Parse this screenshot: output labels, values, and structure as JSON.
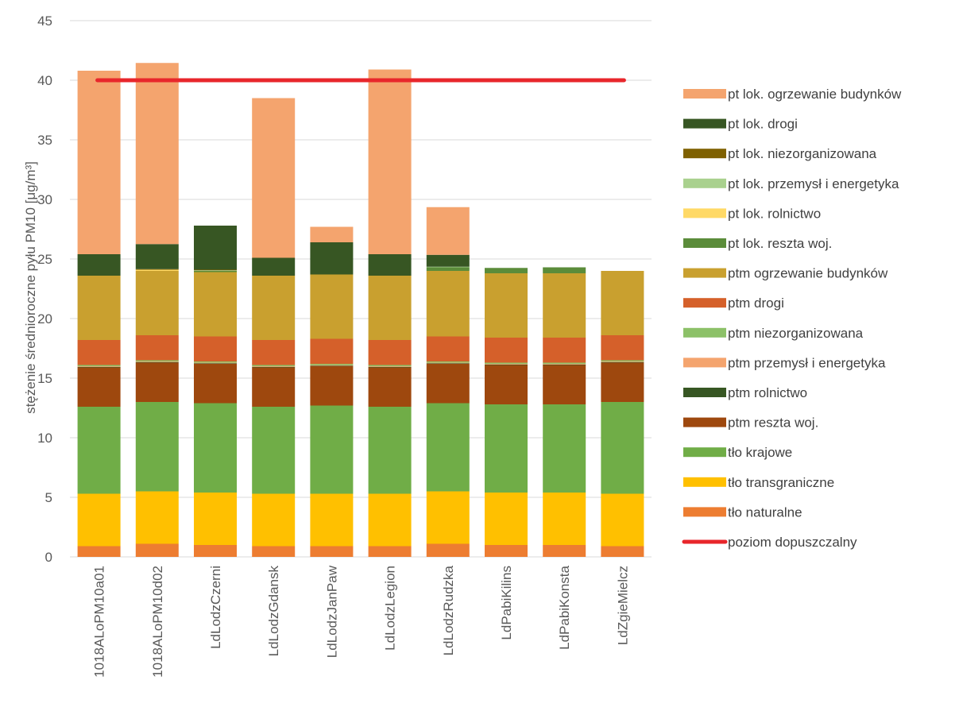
{
  "chart_data": {
    "type": "bar",
    "stacked": true,
    "title": "",
    "xlabel": "",
    "ylabel": "stężenie średnioroczne pyłu PM10 [μg/m³]",
    "ylim": [
      0,
      45
    ],
    "yticks": [
      0,
      5,
      10,
      15,
      20,
      25,
      30,
      35,
      40,
      45
    ],
    "grid": true,
    "legend_position": "right",
    "categories": [
      "1018ALoPM10a01",
      "1018ALoPM10d02",
      "LdLodzCzerni",
      "LdLodzGdansk",
      "LdLodzJanPaw",
      "LdLodzLegion",
      "LdLodzRudzka",
      "LdPabiKilins",
      "LdPabiKonsta",
      "LdZgieMielcz"
    ],
    "series": [
      {
        "name": "tło naturalne",
        "color": "#ED7D31",
        "values": [
          0.9,
          1.1,
          1.0,
          0.9,
          0.9,
          0.9,
          1.1,
          1.0,
          1.0,
          0.9
        ]
      },
      {
        "name": "tło transgraniczne",
        "color": "#FFC000",
        "values": [
          4.4,
          4.4,
          4.4,
          4.4,
          4.4,
          4.4,
          4.4,
          4.4,
          4.4,
          4.4
        ]
      },
      {
        "name": "tło krajowe",
        "color": "#70AD47",
        "values": [
          7.3,
          7.5,
          7.5,
          7.3,
          7.4,
          7.3,
          7.4,
          7.4,
          7.4,
          7.7
        ]
      },
      {
        "name": "ptm reszta woj.",
        "color": "#9E480E",
        "values": [
          3.3,
          3.3,
          3.3,
          3.3,
          3.3,
          3.3,
          3.3,
          3.3,
          3.3,
          3.3
        ]
      },
      {
        "name": "ptm rolnictwo",
        "color": "#375623",
        "values": [
          0.05,
          0.05,
          0.05,
          0.05,
          0.05,
          0.05,
          0.05,
          0.05,
          0.05,
          0.05
        ]
      },
      {
        "name": "ptm przemysł i energetyka",
        "color": "#F4A46E",
        "values": [
          0.05,
          0.05,
          0.05,
          0.05,
          0.05,
          0.05,
          0.05,
          0.05,
          0.05,
          0.05
        ]
      },
      {
        "name": "ptm niezorganizowana",
        "color": "#8CC168",
        "values": [
          0.1,
          0.1,
          0.1,
          0.1,
          0.1,
          0.1,
          0.1,
          0.1,
          0.1,
          0.1
        ]
      },
      {
        "name": "ptm drogi",
        "color": "#D5602A",
        "values": [
          2.1,
          2.1,
          2.1,
          2.1,
          2.1,
          2.1,
          2.1,
          2.1,
          2.1,
          2.1
        ]
      },
      {
        "name": "ptm ogrzewanie budynków",
        "color": "#C9A02F",
        "values": [
          5.4,
          5.4,
          5.4,
          5.4,
          5.4,
          5.4,
          5.5,
          5.4,
          5.4,
          5.4
        ]
      },
      {
        "name": "pt lok. reszta woj.",
        "color": "#5B8C3A",
        "values": [
          0.0,
          0.0,
          0.1,
          0.0,
          0.0,
          0.0,
          0.3,
          0.45,
          0.5,
          0.0
        ]
      },
      {
        "name": "pt lok. rolnictwo",
        "color": "#FFD966",
        "values": [
          0.0,
          0.1,
          0.0,
          0.0,
          0.0,
          0.0,
          0.0,
          0.0,
          0.0,
          0.0
        ]
      },
      {
        "name": "pt lok. przemysł i energetyka",
        "color": "#A9D18E",
        "values": [
          0.0,
          0.0,
          0.05,
          0.0,
          0.0,
          0.0,
          0.05,
          0.0,
          0.0,
          0.0
        ]
      },
      {
        "name": "pt lok. niezorganizowana",
        "color": "#7F6000",
        "values": [
          0.0,
          0.05,
          0.05,
          0.0,
          0.0,
          0.0,
          0.0,
          0.0,
          0.0,
          0.0
        ]
      },
      {
        "name": "pt lok. drogi",
        "color": "#375623",
        "values": [
          1.8,
          2.1,
          3.7,
          1.5,
          2.7,
          1.8,
          1.0,
          0.0,
          0.0,
          0.0
        ]
      },
      {
        "name": "pt lok. ogrzewanie budynków",
        "color": "#F4A46E",
        "values": [
          15.4,
          15.2,
          0.0,
          13.4,
          1.3,
          15.5,
          4.0,
          0.0,
          0.0,
          0.0
        ]
      }
    ],
    "reference_line": {
      "name": "poziom dopuszczalny",
      "value": 40,
      "color": "#E8262B"
    },
    "legend_order": [
      "pt lok. ogrzewanie budynków",
      "pt lok. drogi",
      "pt lok. niezorganizowana",
      "pt lok. przemysł i energetyka",
      "pt lok. rolnictwo",
      "pt lok. reszta woj.",
      "ptm ogrzewanie budynków",
      "ptm drogi",
      "ptm niezorganizowana",
      "ptm przemysł i energetyka",
      "ptm rolnictwo",
      "ptm reszta woj.",
      "tło krajowe",
      "tło transgraniczne",
      "tło naturalne",
      "poziom dopuszczalny"
    ]
  }
}
